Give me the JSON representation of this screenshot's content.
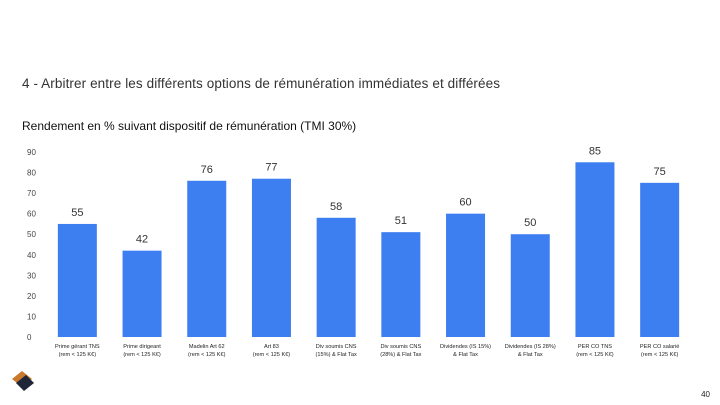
{
  "slide": {
    "title": "4 - Arbitrer entre les différents options de rémunération immédiates et différées",
    "page_number": "40"
  },
  "chart_data": {
    "type": "bar",
    "title": "Rendement en % suivant dispositif de rémunération (TMI 30%)",
    "xlabel": "",
    "ylabel": "",
    "ylim": [
      0,
      90
    ],
    "yticks": [
      0,
      10,
      20,
      30,
      40,
      50,
      60,
      70,
      80,
      90
    ],
    "grid": false,
    "legend": "none",
    "bar_color": "#3d7ef0",
    "categories": [
      [
        "Prime gérant TNS",
        "(rem < 125 K€)"
      ],
      [
        "Prime dirigeant",
        "(rem < 125 K€)"
      ],
      [
        "Madelin Art 62",
        "(rem < 125 K€)"
      ],
      [
        "Art 83",
        "(rem < 125 K€)"
      ],
      [
        "Div soumis CNS",
        "(15%) & Flat Tax"
      ],
      [
        "Div soumis CNS",
        "(28%) & Flat Tax"
      ],
      [
        "Dividendes (IS 15%)",
        "& Flat Tax"
      ],
      [
        "Dividendes (IS 28%)",
        "& Flat Tax"
      ],
      [
        "PER CO TNS",
        "(rem < 125 K€)"
      ],
      [
        "PER CO salarié",
        "(rem < 125 K€)"
      ]
    ],
    "values": [
      55,
      42,
      76,
      77,
      58,
      51,
      60,
      50,
      85,
      75
    ]
  }
}
